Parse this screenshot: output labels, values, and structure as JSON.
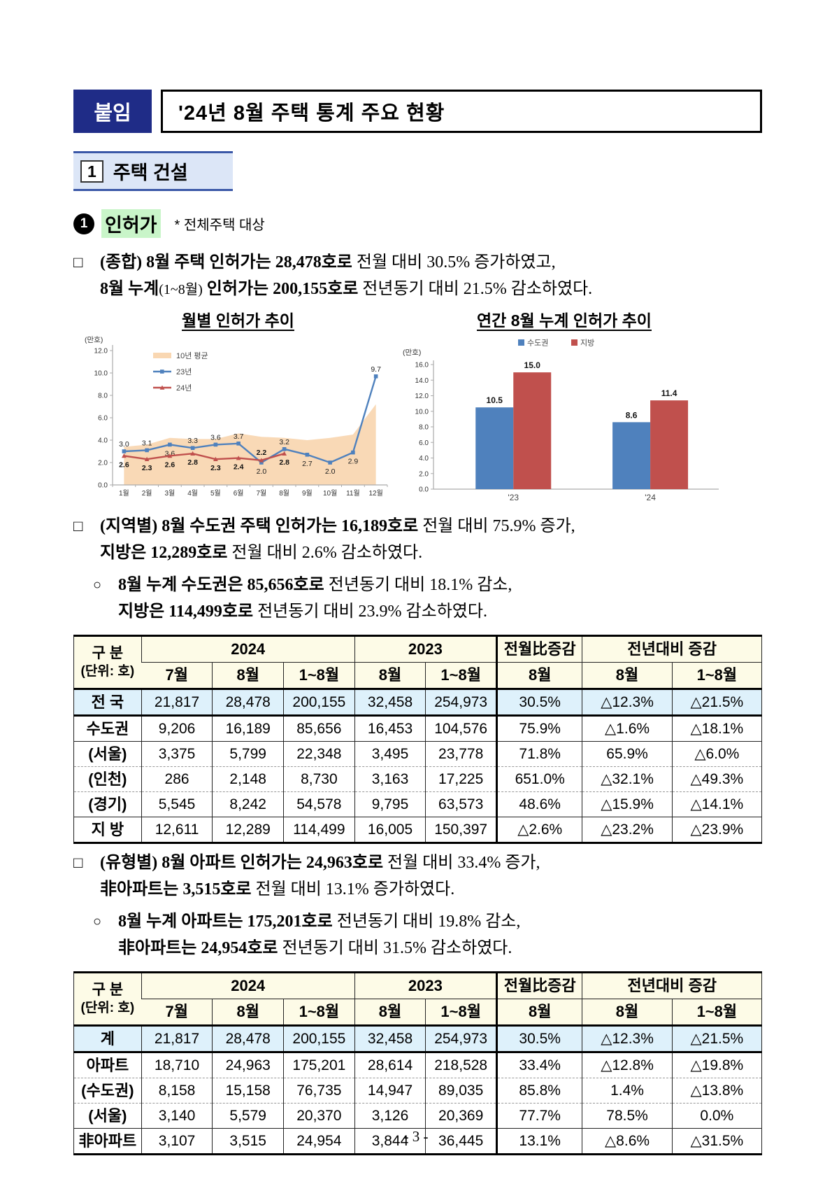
{
  "header": {
    "badge": "붙임",
    "title": "'24년 8월 주택 통계 주요 현황"
  },
  "section": {
    "number": "1",
    "title": "주택 건설"
  },
  "subsection": {
    "bullet_number": "1",
    "title": "인허가",
    "note": "* 전체주택 대상"
  },
  "paragraphs": [
    {
      "marker": "□",
      "level": 0,
      "lines": [
        [
          {
            "t": "(종합) 8월 주택 인허가는 28,478호로",
            "b": true
          },
          {
            "t": " 전월 대비 30.5% 증가하였고,"
          }
        ],
        [
          {
            "t": "8월 누계",
            "b": true
          },
          {
            "t": "(1~8월)",
            "small": true
          },
          {
            "t": " "
          },
          {
            "t": "인허가는 200,155호로",
            "b": true
          },
          {
            "t": " 전년동기 대비 21.5% 감소하였다."
          }
        ]
      ]
    },
    {
      "marker": "□",
      "level": 0,
      "lines": [
        [
          {
            "t": "(지역별) 8월 수도권 주택 인허가는 16,189호로",
            "b": true
          },
          {
            "t": " 전월 대비 75.9% 증가,"
          }
        ],
        [
          {
            "t": "지방은 12,289호로",
            "b": true
          },
          {
            "t": " 전월 대비 2.6% 감소하였다."
          }
        ]
      ]
    },
    {
      "marker": "○",
      "level": 1,
      "lines": [
        [
          {
            "t": "8월 누계 수도권은 85,656호로",
            "b": true
          },
          {
            "t": " 전년동기 대비 18.1% 감소,"
          }
        ],
        [
          {
            "t": "지방은 114,499호로",
            "b": true
          },
          {
            "t": " 전년동기 대비 23.9% 감소하였다."
          }
        ]
      ]
    },
    {
      "marker": "□",
      "level": 0,
      "lines": [
        [
          {
            "t": "(유형별) 8월 아파트 인허가는 24,963호로",
            "b": true
          },
          {
            "t": " 전월 대비 33.4% 증가,"
          }
        ],
        [
          {
            "t": "非아파트는 3,515호로",
            "b": true
          },
          {
            "t": " 전월 대비 13.1% 증가하였다."
          }
        ]
      ]
    },
    {
      "marker": "○",
      "level": 1,
      "lines": [
        [
          {
            "t": "8월 누계 아파트는 175,201호로",
            "b": true
          },
          {
            "t": " 전년동기 대비 19.8% 감소,"
          }
        ],
        [
          {
            "t": "非아파트는 24,954호로",
            "b": true
          },
          {
            "t": " 전년동기 대비 31.5% 감소하였다."
          }
        ]
      ]
    }
  ],
  "colors": {
    "navy": "#1F2C87",
    "section_bg": "#DCE6F7",
    "section_border": "#3A57A7",
    "green_highlight": "#C9F5C9",
    "table_header_bg": "#FDFBE7",
    "row_highlight": "#DEF1FB",
    "blue": "#4F81BD",
    "red": "#C0504D",
    "area": "#F9D7B2"
  },
  "chart_data": [
    {
      "type": "line",
      "title": "월별 인허가 추이",
      "unit_label": "(만호)",
      "x": [
        "1월",
        "2월",
        "3월",
        "4월",
        "5월",
        "6월",
        "7월",
        "8월",
        "9월",
        "10월",
        "11월",
        "12월"
      ],
      "ylim": [
        0,
        12
      ],
      "ytick_step": 2,
      "legend_position": "top-left",
      "series": [
        {
          "name": "10년 평균",
          "kind": "area",
          "color_key": "area",
          "values": [
            3.4,
            3.6,
            4.2,
            4.1,
            4.1,
            4.6,
            4.3,
            4.2,
            4.0,
            4.2,
            4.5,
            7.2
          ]
        },
        {
          "name": "23년",
          "kind": "line",
          "color_key": "blue",
          "values": [
            3.0,
            3.1,
            3.6,
            3.3,
            3.6,
            3.7,
            2.0,
            3.2,
            2.7,
            2.0,
            2.9,
            9.7
          ]
        },
        {
          "name": "24년",
          "kind": "line",
          "color_key": "red",
          "values": [
            2.6,
            2.3,
            2.6,
            2.8,
            2.3,
            2.4,
            2.2,
            2.8
          ]
        }
      ]
    },
    {
      "type": "bar",
      "title": "연간 8월 누계 인허가 추이",
      "unit_label": "(만호)",
      "categories": [
        "'23",
        "'24"
      ],
      "ylim": [
        0,
        16
      ],
      "ytick_step": 2,
      "legend_position": "top",
      "series": [
        {
          "name": "수도권",
          "color_key": "blue",
          "values": [
            10.5,
            8.6
          ]
        },
        {
          "name": "지방",
          "color_key": "red",
          "values": [
            15.0,
            11.4
          ]
        }
      ]
    }
  ],
  "tables": [
    {
      "name": "permits-by-region",
      "col_widths": [
        "9.8%",
        "10.3%",
        "10.3%",
        "10.3%",
        "10.3%",
        "10.3%",
        "12.4%",
        "13%",
        "13%"
      ],
      "header": {
        "label_line1": "구 분",
        "label_line2": "(단위: 호)",
        "group_2024": "2024",
        "group_2023": "2023",
        "group_mom": "전월比증감",
        "group_yoy": "전년대비 증감",
        "sub_cols": [
          "7월",
          "8월",
          "1~8월",
          "8월",
          "1~8월",
          "8월",
          "8월",
          "1~8월"
        ]
      },
      "rows": [
        {
          "label": "전 국",
          "highlight": true,
          "sep": "solid",
          "cells": [
            "21,817",
            "28,478",
            "200,155",
            "32,458",
            "254,973",
            "30.5%",
            "△12.3%",
            "△21.5%"
          ]
        },
        {
          "label": "수도권",
          "highlight": false,
          "sep": "solid",
          "cells": [
            "9,206",
            "16,189",
            "85,656",
            "16,453",
            "104,576",
            "75.9%",
            "△1.6%",
            "△18.1%"
          ]
        },
        {
          "label": "(서울)",
          "highlight": false,
          "sep": "solid",
          "cells": [
            "3,375",
            "5,799",
            "22,348",
            "3,495",
            "23,778",
            "71.8%",
            "65.9%",
            "△6.0%"
          ]
        },
        {
          "label": "(인천)",
          "highlight": false,
          "sep": "dashed",
          "cells": [
            "286",
            "2,148",
            "8,730",
            "3,163",
            "17,225",
            "651.0%",
            "△32.1%",
            "△49.3%"
          ]
        },
        {
          "label": "(경기)",
          "highlight": false,
          "sep": "dashed",
          "cells": [
            "5,545",
            "8,242",
            "54,578",
            "9,795",
            "63,573",
            "48.6%",
            "△15.9%",
            "△14.1%"
          ]
        },
        {
          "label": "지 방",
          "highlight": false,
          "sep": "solid",
          "cells": [
            "12,611",
            "12,289",
            "114,499",
            "16,005",
            "150,397",
            "△2.6%",
            "△23.2%",
            "△23.9%"
          ]
        }
      ]
    },
    {
      "name": "permits-by-type",
      "col_widths": [
        "9.8%",
        "10.3%",
        "10.3%",
        "10.3%",
        "10.3%",
        "10.3%",
        "12.4%",
        "13%",
        "13%"
      ],
      "header": {
        "label_line1": "구 분",
        "label_line2": "(단위: 호)",
        "group_2024": "2024",
        "group_2023": "2023",
        "group_mom": "전월比증감",
        "group_yoy": "전년대비 증감",
        "sub_cols": [
          "7월",
          "8월",
          "1~8월",
          "8월",
          "1~8월",
          "8월",
          "8월",
          "1~8월"
        ]
      },
      "rows": [
        {
          "label": "계",
          "highlight": true,
          "sep": "solid",
          "cells": [
            "21,817",
            "28,478",
            "200,155",
            "32,458",
            "254,973",
            "30.5%",
            "△12.3%",
            "△21.5%"
          ]
        },
        {
          "label": "아파트",
          "highlight": false,
          "sep": "solid",
          "cells": [
            "18,710",
            "24,963",
            "175,201",
            "28,614",
            "218,528",
            "33.4%",
            "△12.8%",
            "△19.8%"
          ]
        },
        {
          "label": "(수도권)",
          "highlight": false,
          "sep": "dashed",
          "cells": [
            "8,158",
            "15,158",
            "76,735",
            "14,947",
            "89,035",
            "85.8%",
            "1.4%",
            "△13.8%"
          ]
        },
        {
          "label": "(서울)",
          "highlight": false,
          "sep": "dashed",
          "cells": [
            "3,140",
            "5,579",
            "20,370",
            "3,126",
            "20,369",
            "77.7%",
            "78.5%",
            "0.0%"
          ]
        },
        {
          "label": "非아파트",
          "highlight": false,
          "sep": "solid",
          "cells": [
            "3,107",
            "3,515",
            "24,954",
            "3,844",
            "36,445",
            "13.1%",
            "△8.6%",
            "△31.5%"
          ]
        }
      ]
    }
  ],
  "page": {
    "footer": "- 3 -"
  }
}
